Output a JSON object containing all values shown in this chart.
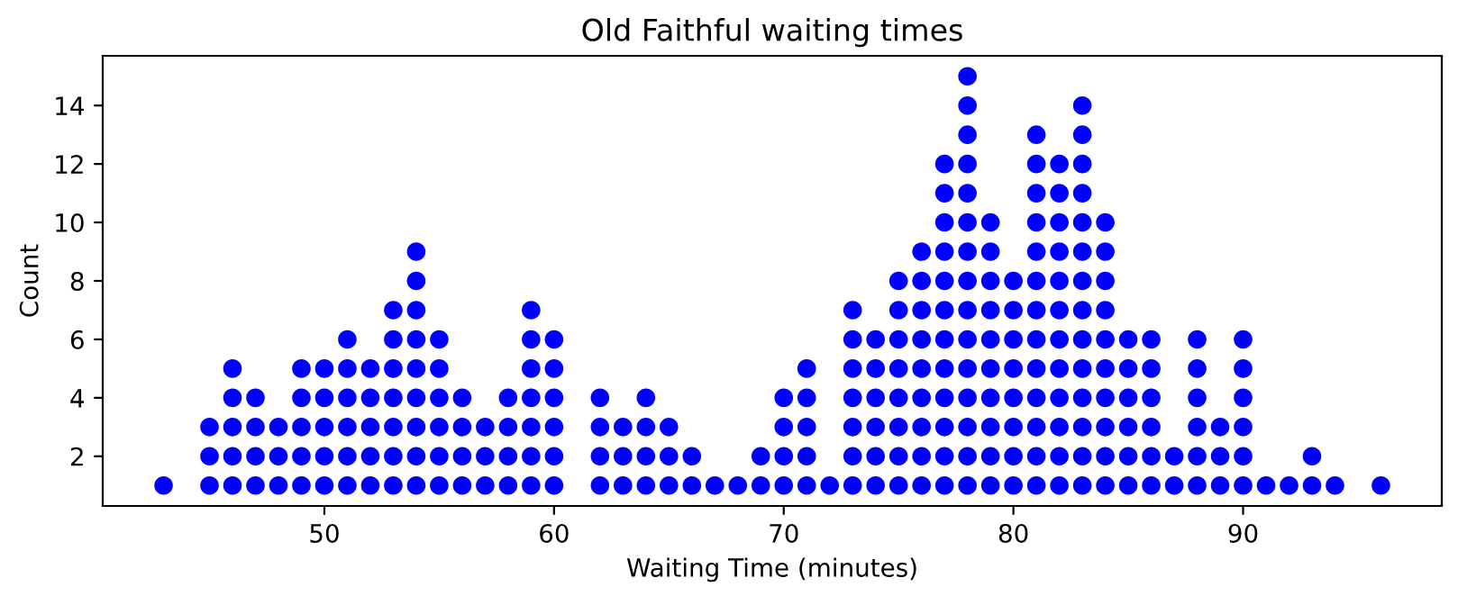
{
  "chart_data": {
    "type": "scatter",
    "title": "Old Faithful waiting times",
    "xlabel": "Waiting Time (minutes)",
    "ylabel": "Count",
    "x": [
      43,
      45,
      45,
      45,
      46,
      46,
      46,
      46,
      46,
      47,
      47,
      47,
      47,
      48,
      48,
      48,
      49,
      49,
      49,
      49,
      49,
      50,
      50,
      50,
      50,
      50,
      51,
      51,
      51,
      51,
      51,
      51,
      52,
      52,
      52,
      52,
      52,
      53,
      53,
      53,
      53,
      53,
      53,
      53,
      54,
      54,
      54,
      54,
      54,
      54,
      54,
      54,
      54,
      55,
      55,
      55,
      55,
      55,
      55,
      56,
      56,
      56,
      56,
      57,
      57,
      57,
      58,
      58,
      58,
      58,
      59,
      59,
      59,
      59,
      59,
      59,
      59,
      60,
      60,
      60,
      60,
      60,
      60,
      62,
      62,
      62,
      62,
      63,
      63,
      63,
      64,
      64,
      64,
      64,
      65,
      65,
      65,
      66,
      66,
      67,
      68,
      69,
      69,
      70,
      70,
      70,
      70,
      71,
      71,
      71,
      71,
      71,
      72,
      73,
      73,
      73,
      73,
      73,
      73,
      73,
      74,
      74,
      74,
      74,
      74,
      74,
      75,
      75,
      75,
      75,
      75,
      75,
      75,
      75,
      76,
      76,
      76,
      76,
      76,
      76,
      76,
      76,
      76,
      77,
      77,
      77,
      77,
      77,
      77,
      77,
      77,
      77,
      77,
      77,
      77,
      78,
      78,
      78,
      78,
      78,
      78,
      78,
      78,
      78,
      78,
      78,
      78,
      78,
      78,
      78,
      79,
      79,
      79,
      79,
      79,
      79,
      79,
      79,
      79,
      79,
      80,
      80,
      80,
      80,
      80,
      80,
      80,
      80,
      81,
      81,
      81,
      81,
      81,
      81,
      81,
      81,
      81,
      81,
      81,
      81,
      81,
      82,
      82,
      82,
      82,
      82,
      82,
      82,
      82,
      82,
      82,
      82,
      82,
      83,
      83,
      83,
      83,
      83,
      83,
      83,
      83,
      83,
      83,
      83,
      83,
      83,
      83,
      84,
      84,
      84,
      84,
      84,
      84,
      84,
      84,
      84,
      84,
      85,
      85,
      85,
      85,
      85,
      85,
      86,
      86,
      86,
      86,
      86,
      86,
      87,
      87,
      88,
      88,
      88,
      88,
      88,
      88,
      89,
      89,
      89,
      90,
      90,
      90,
      90,
      90,
      90,
      91,
      92,
      93,
      93,
      94,
      96
    ],
    "values": [
      1,
      1,
      2,
      3,
      1,
      2,
      3,
      4,
      5,
      1,
      2,
      3,
      4,
      1,
      2,
      3,
      1,
      2,
      3,
      4,
      5,
      1,
      2,
      3,
      4,
      5,
      1,
      2,
      3,
      4,
      5,
      6,
      1,
      2,
      3,
      4,
      5,
      1,
      2,
      3,
      4,
      5,
      6,
      7,
      1,
      2,
      3,
      4,
      5,
      6,
      7,
      8,
      9,
      1,
      2,
      3,
      4,
      5,
      6,
      1,
      2,
      3,
      4,
      1,
      2,
      3,
      1,
      2,
      3,
      4,
      1,
      2,
      3,
      4,
      5,
      6,
      7,
      1,
      2,
      3,
      4,
      5,
      6,
      1,
      2,
      3,
      4,
      1,
      2,
      3,
      1,
      2,
      3,
      4,
      1,
      2,
      3,
      1,
      2,
      1,
      1,
      1,
      2,
      1,
      2,
      3,
      4,
      1,
      2,
      3,
      4,
      5,
      1,
      1,
      2,
      3,
      4,
      5,
      6,
      7,
      1,
      2,
      3,
      4,
      5,
      6,
      1,
      2,
      3,
      4,
      5,
      6,
      7,
      8,
      1,
      2,
      3,
      4,
      5,
      6,
      7,
      8,
      9,
      1,
      2,
      3,
      4,
      5,
      6,
      7,
      8,
      9,
      10,
      11,
      12,
      1,
      2,
      3,
      4,
      5,
      6,
      7,
      8,
      9,
      10,
      11,
      12,
      13,
      14,
      15,
      1,
      2,
      3,
      4,
      5,
      6,
      7,
      8,
      9,
      10,
      1,
      2,
      3,
      4,
      5,
      6,
      7,
      8,
      1,
      2,
      3,
      4,
      5,
      6,
      7,
      8,
      9,
      10,
      11,
      12,
      13,
      1,
      2,
      3,
      4,
      5,
      6,
      7,
      8,
      9,
      10,
      11,
      12,
      1,
      2,
      3,
      4,
      5,
      6,
      7,
      8,
      9,
      10,
      11,
      12,
      13,
      14,
      1,
      2,
      3,
      4,
      5,
      6,
      7,
      8,
      9,
      10,
      1,
      2,
      3,
      4,
      5,
      6,
      1,
      2,
      3,
      4,
      5,
      6,
      1,
      2,
      1,
      2,
      3,
      4,
      5,
      6,
      1,
      2,
      3,
      1,
      2,
      3,
      4,
      5,
      6,
      1,
      1,
      1,
      2,
      1,
      1
    ],
    "color": "#0000ff",
    "marker": "circle",
    "xlim": [
      40.35,
      98.65
    ],
    "ylim": [
      0.3,
      15.7
    ],
    "xticks": [
      50,
      60,
      70,
      80,
      90
    ],
    "yticks": [
      2,
      4,
      6,
      8,
      10,
      12,
      14
    ],
    "grid": false
  }
}
